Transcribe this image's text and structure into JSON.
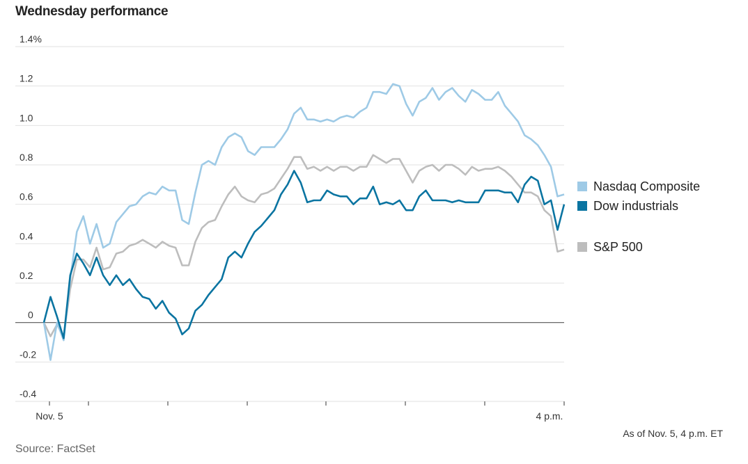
{
  "title": "Wednesday performance",
  "note": "As of Nov. 5, 4 p.m. ET",
  "source": "Source: FactSet",
  "chart_data": {
    "type": "line",
    "title": "Wednesday performance",
    "ylim": [
      -0.4,
      1.4
    ],
    "yticks": [
      -0.4,
      -0.2,
      0,
      0.2,
      0.4,
      0.6,
      0.8,
      1.0,
      1.2,
      1.4
    ],
    "ytick_labels": [
      "-0.4",
      "-0.2",
      "0",
      "0.2",
      "0.4",
      "0.6",
      "0.8",
      "1.0",
      "1.2",
      "1.4%"
    ],
    "x_start_label": "Nov. 5",
    "x_end_label": "4 p.m.",
    "grid": true,
    "legend_placement": "right",
    "series": [
      {
        "name": "Nasdaq Composite",
        "color": "#9ecae6",
        "values": [
          0.0,
          -0.19,
          0.0,
          -0.09,
          0.22,
          0.46,
          0.54,
          0.4,
          0.5,
          0.38,
          0.4,
          0.51,
          0.55,
          0.59,
          0.6,
          0.64,
          0.66,
          0.65,
          0.69,
          0.67,
          0.67,
          0.52,
          0.5,
          0.66,
          0.8,
          0.82,
          0.8,
          0.89,
          0.94,
          0.96,
          0.94,
          0.87,
          0.85,
          0.89,
          0.89,
          0.89,
          0.93,
          0.98,
          1.06,
          1.09,
          1.03,
          1.03,
          1.02,
          1.03,
          1.02,
          1.04,
          1.05,
          1.04,
          1.07,
          1.09,
          1.17,
          1.17,
          1.16,
          1.21,
          1.2,
          1.11,
          1.05,
          1.12,
          1.14,
          1.19,
          1.13,
          1.17,
          1.19,
          1.15,
          1.12,
          1.18,
          1.16,
          1.13,
          1.13,
          1.17,
          1.1,
          1.06,
          1.02,
          0.95,
          0.93,
          0.9,
          0.85,
          0.79,
          0.64,
          0.65
        ]
      },
      {
        "name": "Dow industrials",
        "color": "#0a74a1",
        "values": [
          0.0,
          0.13,
          0.03,
          -0.08,
          0.24,
          0.35,
          0.3,
          0.24,
          0.33,
          0.24,
          0.19,
          0.24,
          0.19,
          0.22,
          0.17,
          0.13,
          0.12,
          0.07,
          0.11,
          0.05,
          0.02,
          -0.06,
          -0.03,
          0.06,
          0.09,
          0.14,
          0.18,
          0.22,
          0.33,
          0.36,
          0.33,
          0.4,
          0.46,
          0.49,
          0.53,
          0.57,
          0.65,
          0.7,
          0.77,
          0.71,
          0.61,
          0.62,
          0.62,
          0.67,
          0.65,
          0.64,
          0.64,
          0.6,
          0.63,
          0.63,
          0.69,
          0.6,
          0.61,
          0.6,
          0.62,
          0.57,
          0.57,
          0.64,
          0.67,
          0.62,
          0.62,
          0.62,
          0.61,
          0.62,
          0.61,
          0.61,
          0.61,
          0.67,
          0.67,
          0.67,
          0.66,
          0.66,
          0.61,
          0.7,
          0.74,
          0.72,
          0.6,
          0.62,
          0.47,
          0.6
        ]
      },
      {
        "name": "S&P 500",
        "color": "#bdbdbd",
        "values": [
          0.0,
          -0.07,
          -0.01,
          -0.07,
          0.17,
          0.32,
          0.32,
          0.28,
          0.38,
          0.27,
          0.28,
          0.35,
          0.36,
          0.39,
          0.4,
          0.42,
          0.4,
          0.38,
          0.41,
          0.39,
          0.38,
          0.29,
          0.29,
          0.41,
          0.48,
          0.51,
          0.52,
          0.59,
          0.65,
          0.69,
          0.64,
          0.62,
          0.61,
          0.65,
          0.66,
          0.68,
          0.73,
          0.78,
          0.84,
          0.84,
          0.78,
          0.79,
          0.77,
          0.79,
          0.77,
          0.79,
          0.79,
          0.77,
          0.79,
          0.79,
          0.85,
          0.83,
          0.81,
          0.83,
          0.83,
          0.77,
          0.71,
          0.77,
          0.79,
          0.8,
          0.77,
          0.8,
          0.8,
          0.78,
          0.75,
          0.79,
          0.77,
          0.78,
          0.78,
          0.79,
          0.77,
          0.74,
          0.7,
          0.66,
          0.66,
          0.64,
          0.57,
          0.54,
          0.36,
          0.37
        ]
      }
    ]
  }
}
